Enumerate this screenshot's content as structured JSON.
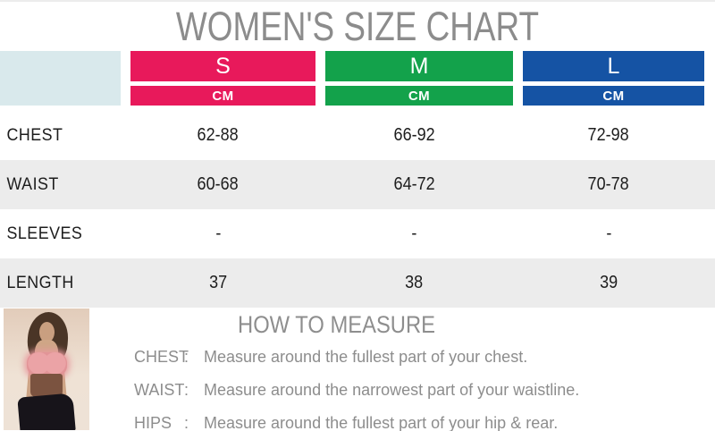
{
  "title": "WOMEN'S SIZE CHART",
  "table": {
    "corner_color": "#d9e9ec",
    "columns": [
      {
        "label": "S",
        "unit": "CM",
        "color": "#e8195b"
      },
      {
        "label": "M",
        "unit": "CM",
        "color": "#13a24b"
      },
      {
        "label": "L",
        "unit": "CM",
        "color": "#1553a4"
      }
    ],
    "rows": [
      {
        "label": "CHEST",
        "values": [
          "62-88",
          "66-92",
          "72-98"
        ]
      },
      {
        "label": "WAIST",
        "values": [
          "60-68",
          "64-72",
          "70-78"
        ]
      },
      {
        "label": "SLEEVES",
        "values": [
          "-",
          "-",
          "-"
        ]
      },
      {
        "label": "LENGTH",
        "values": [
          "37",
          "38",
          "39"
        ]
      }
    ]
  },
  "measure": {
    "heading": "HOW TO MEASURE",
    "items": [
      {
        "term": "CHEST",
        "sep": ":",
        "text": "Measure around the fullest part of your chest."
      },
      {
        "term": "WAIST",
        "sep": ":",
        "text": "Measure around the narrowest part of your waistline."
      },
      {
        "term": "HIPS",
        "sep": ":",
        "text": "Measure around the fullest part of your hip & rear."
      }
    ]
  },
  "chart_data": {
    "type": "table",
    "title": "WOMEN'S SIZE CHART",
    "unit": "CM",
    "columns": [
      "S",
      "M",
      "L"
    ],
    "row_headers": [
      "CHEST",
      "WAIST",
      "SLEEVES",
      "LENGTH"
    ],
    "cells": [
      [
        "62-88",
        "66-92",
        "72-98"
      ],
      [
        "60-68",
        "64-72",
        "70-78"
      ],
      [
        "-",
        "-",
        "-"
      ],
      [
        "37",
        "38",
        "39"
      ]
    ]
  },
  "colors": {
    "title_gray": "#8c8c8c",
    "text_gray": "#8d8d8d",
    "row_alt_gray": "#ececec",
    "cell_text": "#1d1d1d"
  }
}
